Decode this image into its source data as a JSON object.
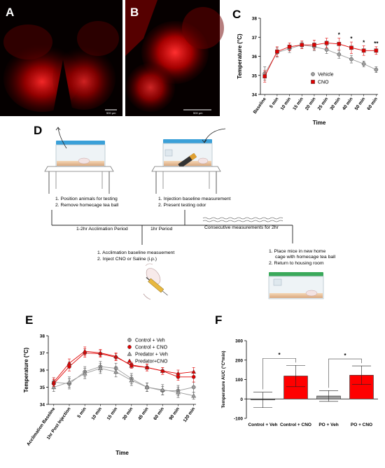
{
  "panels": {
    "a": {
      "letter": "A",
      "scale_label": "500 µm"
    },
    "b": {
      "letter": "B",
      "scale_label": "500 µm"
    },
    "c": {
      "letter": "C"
    },
    "d": {
      "letter": "D"
    },
    "e": {
      "letter": "E"
    },
    "f": {
      "letter": "F"
    }
  },
  "diagram": {
    "step1": [
      "1.  Position animals for testing",
      "2.  Remove homecage tea ball"
    ],
    "step2": [
      "1.  Injection baseline measurement",
      "2.  Present testing odor"
    ],
    "step3": [
      "1.  Acclimation baseline measuement",
      "2.  Inject CNO or Saline (i.p.)"
    ],
    "step4": [
      "1.  Place mice in new home",
      "cage with homecage tea ball",
      "2.  Return to housing room"
    ],
    "period1": "1-2hr Acclimation Period",
    "period2": "1hr Period",
    "period3": "Consecutive measurements for 2hr"
  },
  "chart_data": [
    {
      "panel": "C",
      "type": "line",
      "xlabel": "Time",
      "ylabel": "Temperature (°C)",
      "ylim": [
        34,
        38
      ],
      "yticks": [
        34,
        35,
        36,
        37,
        38
      ],
      "categories": [
        "Baseline",
        "5 min",
        "10 min",
        "15 min",
        "20 min",
        "25 min",
        "30 min",
        "40 min",
        "50 min",
        "60 min"
      ],
      "legend_position": "inside-right",
      "series": [
        {
          "name": "Vehicle",
          "color": "#9e9e9e",
          "marker": "circle",
          "values": [
            35.1,
            36.2,
            36.4,
            36.6,
            36.5,
            36.35,
            36.1,
            35.85,
            35.6,
            35.3
          ],
          "errors": [
            0.35,
            0.25,
            0.2,
            0.15,
            0.2,
            0.2,
            0.2,
            0.2,
            0.15,
            0.15
          ]
        },
        {
          "name": "CNO",
          "color": "#e00000",
          "marker": "square",
          "values": [
            34.95,
            36.25,
            36.5,
            36.6,
            36.6,
            36.7,
            36.65,
            36.45,
            36.3,
            36.3
          ],
          "errors": [
            0.3,
            0.25,
            0.2,
            0.2,
            0.25,
            0.25,
            0.3,
            0.3,
            0.25,
            0.2
          ]
        }
      ],
      "annotations": [
        {
          "category": "30 min",
          "text": "*"
        },
        {
          "category": "40 min",
          "text": "*"
        },
        {
          "category": "50 min",
          "text": "*"
        },
        {
          "category": "60 min",
          "text": "**"
        }
      ]
    },
    {
      "panel": "E",
      "type": "line",
      "xlabel": "Time",
      "ylabel": "Temperature (°C)",
      "ylim": [
        34,
        38
      ],
      "yticks": [
        34,
        35,
        36,
        37,
        38
      ],
      "categories": [
        "Acclimation Baseline",
        "1hr Post Injection",
        "5 min",
        "10 min",
        "15 min",
        "30 min",
        "45 min",
        "60 min",
        "90 min",
        "120 min"
      ],
      "legend_position": "top-right",
      "series": [
        {
          "name": "Control + Veh",
          "color": "#9e9e9e",
          "marker": "circle",
          "values": [
            35.3,
            35.2,
            35.9,
            36.2,
            36.1,
            35.5,
            35.0,
            34.8,
            34.8,
            35.0
          ],
          "errors": [
            0.25,
            0.3,
            0.3,
            0.3,
            0.3,
            0.3,
            0.25,
            0.25,
            0.3,
            0.3
          ]
        },
        {
          "name": "Control + CNO",
          "color": "#e00000",
          "marker": "circle",
          "values": [
            35.2,
            36.2,
            37.0,
            36.95,
            36.75,
            36.3,
            36.15,
            35.95,
            35.6,
            35.6
          ],
          "errors": [
            0.25,
            0.25,
            0.25,
            0.2,
            0.2,
            0.15,
            0.2,
            0.2,
            0.2,
            0.3
          ]
        },
        {
          "name": "Predator + Veh",
          "color": "#9e9e9e",
          "marker": "triangle",
          "values": [
            35.0,
            35.3,
            35.8,
            36.1,
            35.9,
            35.4,
            35.0,
            34.85,
            34.7,
            34.5
          ],
          "errors": [
            0.25,
            0.3,
            0.3,
            0.3,
            0.3,
            0.3,
            0.25,
            0.3,
            0.3,
            0.2
          ]
        },
        {
          "name": "Predator+CNO",
          "color": "#e00000",
          "marker": "triangle",
          "values": [
            35.3,
            36.4,
            37.1,
            37.0,
            36.8,
            36.25,
            36.15,
            35.95,
            35.8,
            35.9
          ],
          "errors": [
            0.25,
            0.25,
            0.25,
            0.2,
            0.2,
            0.15,
            0.2,
            0.2,
            0.2,
            0.25
          ]
        }
      ]
    },
    {
      "panel": "F",
      "type": "bar",
      "ylabel": "Temperature AUC (°C*min)",
      "ylim": [
        -100,
        300
      ],
      "yticks": [
        -100,
        0,
        100,
        200,
        300
      ],
      "categories": [
        "Control + Veh",
        "Control + CNO",
        "PO + Veh",
        "PO + CNO"
      ],
      "values": [
        -5,
        118,
        15,
        122
      ],
      "errors": [
        40,
        55,
        28,
        48
      ],
      "colors": [
        "#9e9e9e",
        "#ff0000",
        "#9e9e9e",
        "#ff0000"
      ],
      "significance": [
        {
          "from": 0,
          "to": 1,
          "text": "*"
        },
        {
          "from": 2,
          "to": 3,
          "text": "*"
        }
      ]
    }
  ]
}
